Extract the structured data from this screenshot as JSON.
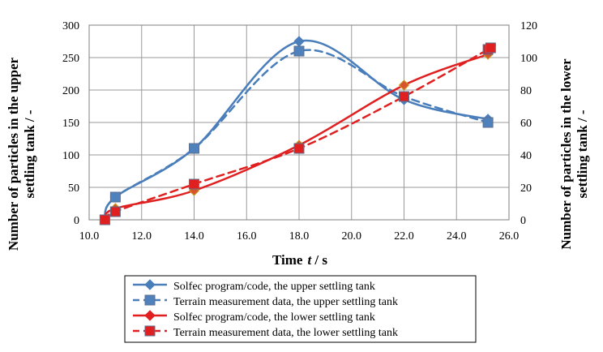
{
  "chart_data": {
    "type": "line",
    "xlabel": "Time",
    "xlabel_var": "t",
    "xlabel_unit": " / s",
    "ylabel_left_line1": "Number of particles in the upper",
    "ylabel_left_line2": "settling tank  /  -",
    "ylabel_right_line1": "Number of particles in the lower",
    "ylabel_right_line2": "settling tank  /  -",
    "xlim": [
      10.0,
      26.0
    ],
    "ylim_left": [
      0,
      300
    ],
    "ylim_right": [
      0,
      120
    ],
    "x_ticks": [
      10,
      12,
      14,
      16,
      18,
      20,
      22,
      24,
      26
    ],
    "x_tick_labels": [
      "10.0",
      "12.0",
      "14.0",
      "16.0",
      "18.0",
      "20.0",
      "22.0",
      "24.0",
      "26.0"
    ],
    "y_left_ticks": [
      0,
      50,
      100,
      150,
      200,
      250,
      300
    ],
    "y_left_tick_labels": [
      "0",
      "50",
      "100",
      "150",
      "200",
      "250",
      "300"
    ],
    "y_right_ticks": [
      0,
      20,
      40,
      60,
      80,
      100,
      120
    ],
    "y_right_tick_labels": [
      "0",
      "20",
      "40",
      "60",
      "80",
      "100",
      "120"
    ],
    "grid": true,
    "legend_position": "bottom-center",
    "series": [
      {
        "name": "Solfec program/code, the upper settling tank",
        "axis": "left",
        "color": "#4a7ebb",
        "dashed": false,
        "marker": "diamond",
        "x": [
          10.6,
          11.0,
          14.0,
          18.0,
          22.0,
          25.2
        ],
        "y": [
          0,
          35,
          110,
          275,
          185,
          155
        ]
      },
      {
        "name": "Terrain measurement data, the upper settling tank",
        "axis": "left",
        "color": "#4a7ebb",
        "dashed": true,
        "marker": "square",
        "x": [
          10.6,
          11.0,
          14.0,
          18.0,
          22.0,
          25.2
        ],
        "y": [
          0,
          35,
          110,
          260,
          190,
          150
        ]
      },
      {
        "name": "Solfec program/code, the lower settling tank",
        "axis": "right",
        "color": "#e02020",
        "dashed": false,
        "marker": "diamond",
        "x": [
          10.6,
          11.0,
          14.0,
          18.0,
          22.0,
          25.2
        ],
        "y": [
          0,
          7,
          18,
          46,
          83,
          102
        ]
      },
      {
        "name": "Terrain measurement data, the lower settling tank",
        "axis": "right",
        "color": "#e02020",
        "dashed": true,
        "marker": "square",
        "x": [
          10.6,
          11.0,
          14.0,
          18.0,
          22.0,
          25.2,
          25.3
        ],
        "y": [
          0,
          5,
          22,
          44,
          76,
          105,
          106
        ]
      }
    ]
  }
}
